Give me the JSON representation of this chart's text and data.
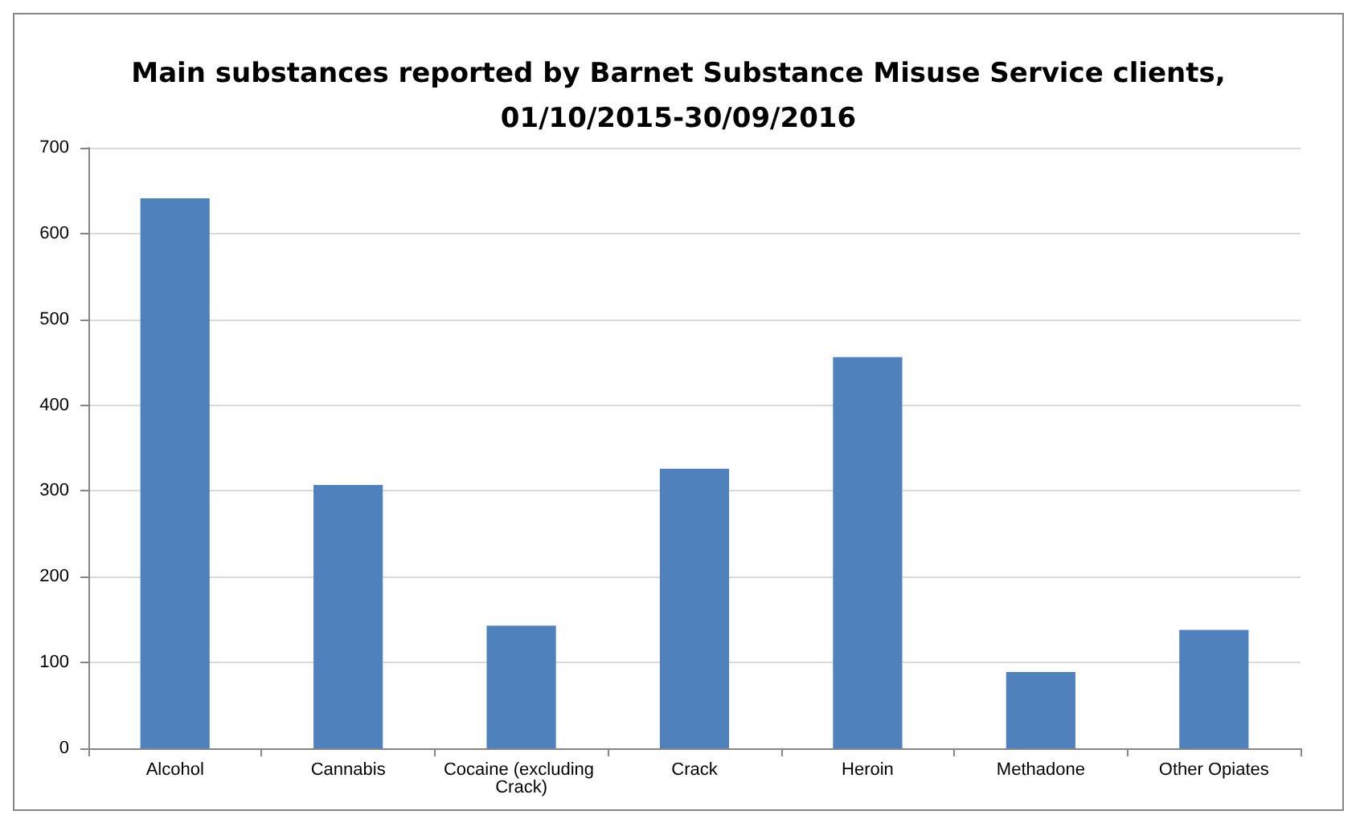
{
  "chart_data": {
    "type": "bar",
    "title": "Main substances reported by Barnet Substance Misuse Service clients,\n01/10/2015-30/09/2016",
    "categories": [
      "Alcohol",
      "Cannabis",
      "Cocaine (excluding Crack)",
      "Crack",
      "Heroin",
      "Methadone",
      "Other Opiates"
    ],
    "values": [
      641,
      307,
      143,
      326,
      456,
      89,
      138
    ],
    "color": "#4f81bd",
    "ylim": [
      0,
      700
    ],
    "yticks": [
      0,
      100,
      200,
      300,
      400,
      500,
      600,
      700
    ],
    "grid": "y"
  }
}
